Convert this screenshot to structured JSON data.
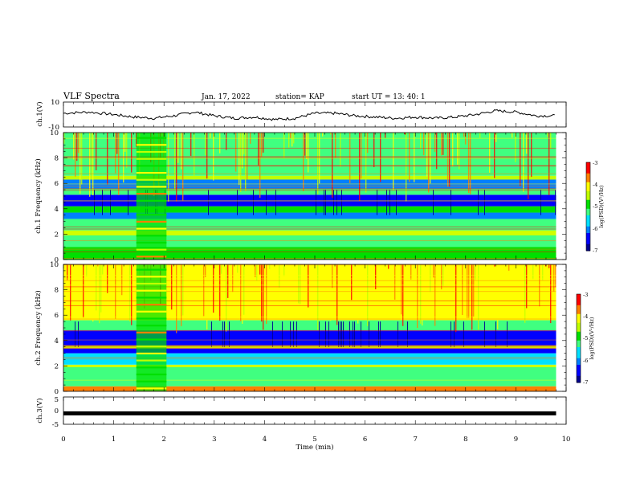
{
  "header": {
    "title": "VLF Spectra",
    "date": "Jan. 17, 2022",
    "station": "station= KAP",
    "start": "start UT = 13: 40: 1"
  },
  "chart_data": [
    {
      "type": "line",
      "panel": "ch1-voltage",
      "ylabel": "ch.1(V)",
      "ylim": [
        -10,
        10
      ],
      "yticks": [
        "10",
        "-10"
      ],
      "x_minutes": [
        0,
        0.5,
        1,
        1.4,
        1.8,
        2.2,
        2.6,
        3.0,
        3.4,
        3.8,
        4.2,
        4.6,
        5.0,
        5.4,
        5.8,
        6.2,
        6.6,
        7.0,
        7.4,
        7.8,
        8.2,
        8.6,
        9.0,
        9.4,
        9.8
      ],
      "values": [
        1,
        2,
        0,
        -2,
        -3,
        -1,
        2,
        -1,
        -3,
        -2,
        -4,
        -3,
        1,
        1,
        -1,
        -2,
        -3,
        -2,
        -3,
        -2,
        0,
        3,
        2,
        -1,
        -1
      ],
      "color": "#000000"
    },
    {
      "type": "heatmap",
      "panel": "ch1-spectrogram",
      "ylabel": "ch.1 Frequency (kHz)",
      "ylim": [
        0,
        10
      ],
      "yticks": [
        "0",
        "2",
        "4",
        "6",
        "8",
        "10"
      ],
      "colorbar": {
        "label": "log(PSD)(V²/Hz)",
        "ticks": [
          "-3",
          "-4",
          "-5",
          "-6",
          "-7"
        ],
        "range": [
          -7,
          -3
        ]
      },
      "bands_khz": [
        {
          "from": 0,
          "to": 1,
          "level": -5.0
        },
        {
          "from": 1,
          "to": 1.9,
          "level": -5.2
        },
        {
          "from": 1.9,
          "to": 2.3,
          "level": -4.4
        },
        {
          "from": 2.3,
          "to": 3.2,
          "level": -5.2
        },
        {
          "from": 3.2,
          "to": 3.7,
          "level": -6.0
        },
        {
          "from": 3.7,
          "to": 4.2,
          "level": -5.0
        },
        {
          "from": 4.2,
          "to": 5.1,
          "level": -6.3
        },
        {
          "from": 5.1,
          "to": 5.6,
          "level": -5.3
        },
        {
          "from": 5.6,
          "to": 6.3,
          "level": -6.0
        },
        {
          "from": 6.3,
          "to": 6.6,
          "level": -4.6
        },
        {
          "from": 6.6,
          "to": 10,
          "level": -5.3
        }
      ],
      "event_minutes": [
        1.45,
        2.05
      ]
    },
    {
      "type": "heatmap",
      "panel": "ch2-spectrogram",
      "ylabel": "ch.2 Frequency (kHz)",
      "ylim": [
        0,
        10
      ],
      "yticks": [
        "0",
        "2",
        "4",
        "6",
        "8",
        "10"
      ],
      "colorbar": {
        "label": "log(PSD)(V²/Hz)",
        "ticks": [
          "-3",
          "-4",
          "-5",
          "-6",
          "-7"
        ],
        "range": [
          -7,
          -3
        ]
      },
      "bands_khz": [
        {
          "from": 0,
          "to": 0.4,
          "level": -3.6
        },
        {
          "from": 0.4,
          "to": 1.9,
          "level": -5.3
        },
        {
          "from": 1.9,
          "to": 2.1,
          "level": -4.6
        },
        {
          "from": 2.1,
          "to": 3.0,
          "level": -5.6
        },
        {
          "from": 3.0,
          "to": 3.4,
          "level": -6.2
        },
        {
          "from": 3.4,
          "to": 3.6,
          "level": -4.6
        },
        {
          "from": 3.6,
          "to": 4.8,
          "level": -6.3
        },
        {
          "from": 4.8,
          "to": 5.6,
          "level": -5.3
        },
        {
          "from": 5.6,
          "to": 10,
          "level": -4.1
        }
      ],
      "event_minutes": [
        1.45,
        2.05
      ]
    },
    {
      "type": "line",
      "panel": "ch3-voltage",
      "ylabel": "ch.3(V)",
      "ylim": [
        -5,
        5
      ],
      "yticks": [
        "5",
        "0",
        "-5"
      ],
      "x_minutes": [
        0,
        9.8
      ],
      "values": [
        -1,
        -1
      ],
      "color": "#000000"
    }
  ],
  "xaxis": {
    "label": "Time (min)",
    "range": [
      0,
      10
    ],
    "ticks": [
      "0",
      "1",
      "2",
      "3",
      "4",
      "5",
      "6",
      "7",
      "8",
      "9",
      "10"
    ]
  },
  "colormap": [
    "#00008f",
    "#0000ff",
    "#0080ff",
    "#00e0ff",
    "#40ff80",
    "#00e000",
    "#c0ff00",
    "#ffff00",
    "#ff8000",
    "#ff0000",
    "#ffffff"
  ]
}
